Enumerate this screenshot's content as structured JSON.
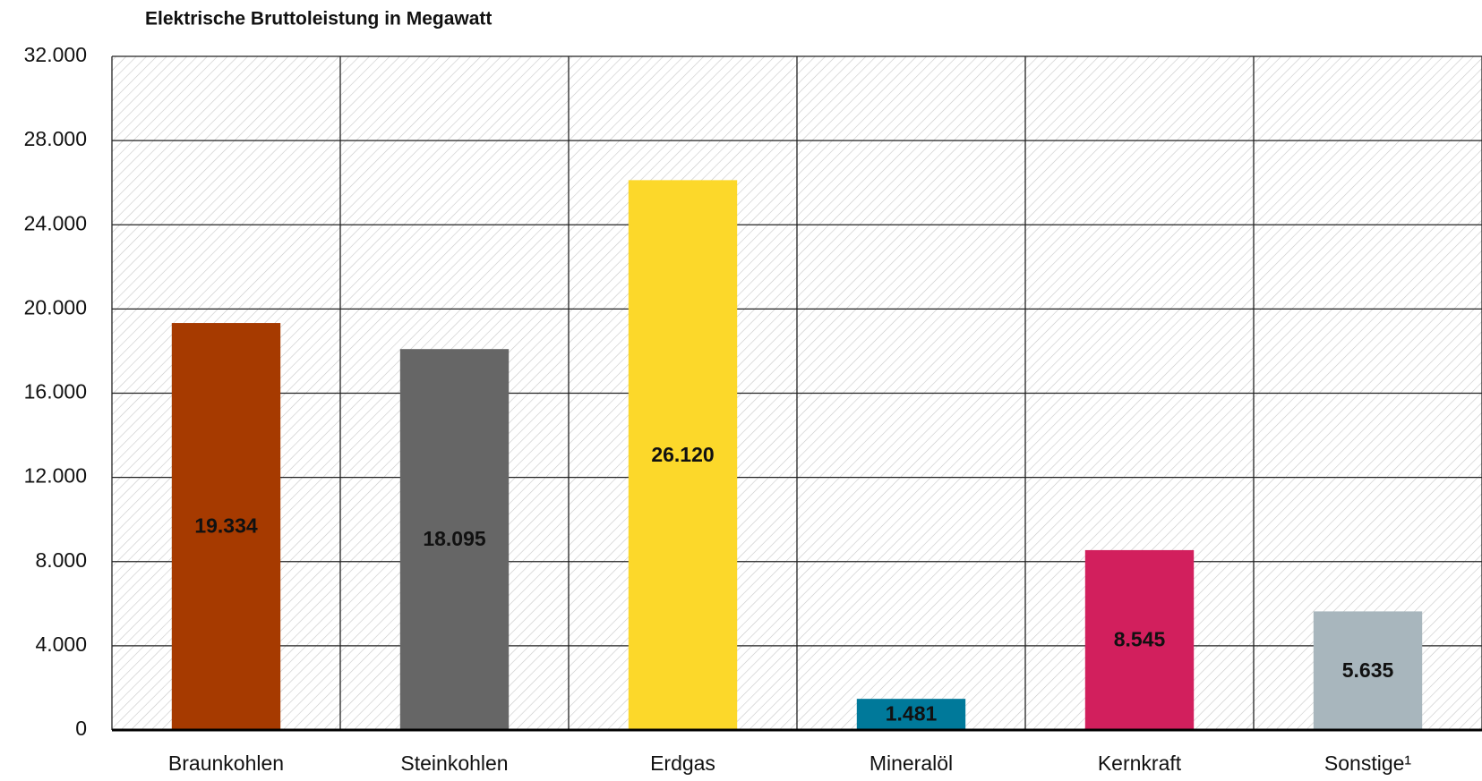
{
  "chart_data": {
    "type": "bar",
    "title": "Elektrische Bruttoleistung in Megawatt",
    "categories": [
      "Braunkohlen",
      "Steinkohlen",
      "Erdgas",
      "Mineralöl",
      "Kernkraft",
      "Sonstige¹"
    ],
    "values": [
      19334,
      18095,
      26120,
      1481,
      8545,
      5635
    ],
    "value_labels": [
      "19.334",
      "18.095",
      "26.120",
      "1.481",
      "8.545",
      "5.635"
    ],
    "colors": [
      "#a63a00",
      "#666666",
      "#fcd82a",
      "#00799a",
      "#d21f5d",
      "#a8b6bd"
    ],
    "ylim": [
      0,
      32000
    ],
    "yticks": [
      0,
      {
        "value": 4000,
        "label": "4.000"
      },
      {
        "value": 8000,
        "label": "8.000"
      },
      {
        "value": 12000,
        "label": "12.000"
      },
      {
        "value": 16000,
        "label": "16.000"
      },
      {
        "value": 20000,
        "label": "20.000"
      },
      {
        "value": 24000,
        "label": "24.000"
      },
      {
        "value": 28000,
        "label": "28.000"
      },
      {
        "value": 32000,
        "label": "32.000"
      }
    ],
    "grid": true
  }
}
